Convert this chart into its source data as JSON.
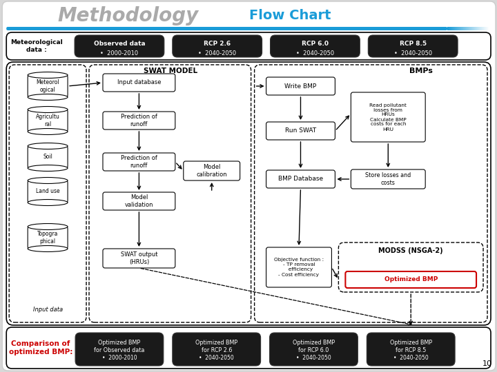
{
  "title": "Methodology",
  "subtitle": "Flow Chart",
  "bg_color": "#d8d8d8",
  "title_color": "#999999",
  "subtitle_color": "#1a9cd8",
  "black_box_color": "#1a1a1a",
  "white_box_color": "#ffffff",
  "comparison_label_color": "#cc0000",
  "optimized_bmp_color": "#cc0000",
  "top_row_boxes": [
    {
      "title": "Observed data",
      "sub": "•  2000-2010"
    },
    {
      "title": "RCP 2.6",
      "sub": "•  2040-2050"
    },
    {
      "title": "RCP 6.0",
      "sub": "•  2040-2050"
    },
    {
      "title": "RCP 8.5",
      "sub": "•  2040-2050"
    }
  ],
  "bottom_row_boxes": [
    {
      "title": "Optimized BMP\nfor Observed data",
      "sub": "•  2000-2010"
    },
    {
      "title": "Optimized BMP\nfor RCP 2.6",
      "sub": "•  2040-2050"
    },
    {
      "title": "Optimized BMP\nfor RCP 6.0",
      "sub": "•  2040-2050"
    },
    {
      "title": "Optimized BMP\nfor RCP 8.5",
      "sub": "•  2040-2050"
    }
  ],
  "left_cylinders": [
    "Meteorol\nogical",
    "Agricultu\nral",
    "Soil",
    "Land use",
    "Topogra\nphical"
  ],
  "left_label": "Input data",
  "swat_boxes": [
    "Input database",
    "Prediction of\nrunoff",
    "Prediction of\nrunoff",
    "Model\nvalidation",
    "SWAT output\n(HRUs)"
  ],
  "model_cal_box": "Model\ncalibration",
  "bmp_left_boxes": [
    "Write BMP",
    "Run SWAT",
    "BMP Database"
  ],
  "read_pollutant_box": "Read pollutant\nlosses from\nHRUs\nCalculate BMP\ncosts for each\nHRU",
  "store_box": "Store losses and\ncosts",
  "obj_box": "Objective function :\n- TP removal\n  efficiency\n- Cost efficiency",
  "modss_label": "MODSS (NSGA-2)",
  "optimized_bmp_box": "Optimized BMP",
  "swat_label": "SWAT MODEL",
  "bmps_label": "BMPs",
  "comparison_label": "Comparison of\noptimized BMP:",
  "page_num": "10"
}
